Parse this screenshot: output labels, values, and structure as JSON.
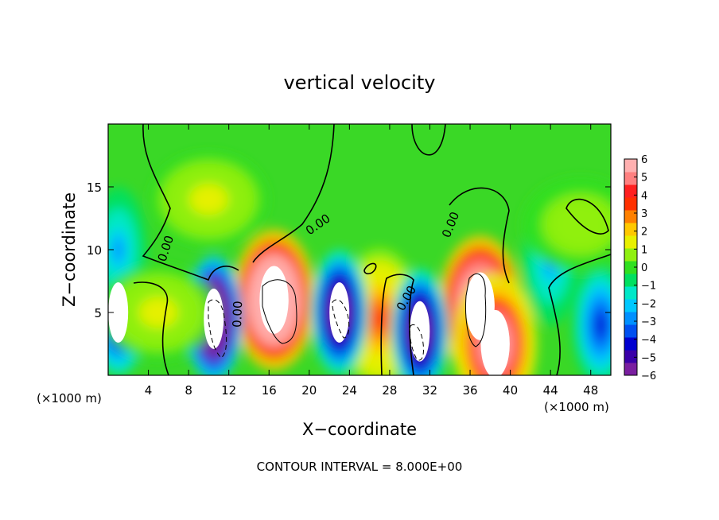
{
  "chart_data": {
    "type": "heatmap",
    "title": "vertical velocity",
    "xlabel": "X−coordinate",
    "ylabel": "Z−coordinate",
    "x_unit_left": "(×1000 m)",
    "x_unit_right": "(×1000 m)",
    "footer": "CONTOUR INTERVAL = 8.000E+00",
    "xlim": [
      0,
      50
    ],
    "ylim": [
      0,
      20
    ],
    "x_ticks": [
      4,
      8,
      12,
      16,
      20,
      24,
      28,
      32,
      36,
      40,
      44,
      48
    ],
    "y_ticks": [
      5,
      10,
      15
    ],
    "colorbar": {
      "min": -6,
      "max": 6,
      "tick_values": [
        6,
        5,
        4,
        3,
        2,
        1,
        0,
        -1,
        -2,
        -3,
        -4,
        -5,
        -6
      ],
      "tick_labels": [
        "6",
        "5",
        "4",
        "3",
        "2",
        "1",
        "0",
        "−1",
        "−2",
        "−3",
        "−4",
        "−5",
        "−6"
      ],
      "colors": [
        "#7a1fa0",
        "#3a00a8",
        "#0000d0",
        "#0050f0",
        "#0090ff",
        "#00c8ff",
        "#00e8c8",
        "#00e060",
        "#30e020",
        "#90f010",
        "#e8f000",
        "#ffc800",
        "#ff8000",
        "#ff3000",
        "#ff2020",
        "#ff8080",
        "#ffb0b0"
      ]
    },
    "contour_labels": [
      "0.00",
      "0.00",
      "0.00",
      "0.00",
      "0.00"
    ],
    "features": [
      {
        "kind": "updraft",
        "x": 16.5,
        "z": 6.0,
        "peak": 13
      },
      {
        "kind": "updraft",
        "x": 37.0,
        "z": 5.5,
        "peak": 12
      },
      {
        "kind": "updraft",
        "x": 38.5,
        "z": 2.5,
        "peak": 8
      },
      {
        "kind": "updraft",
        "x": 27.0,
        "z": 4.5,
        "peak": 4
      },
      {
        "kind": "downdraft",
        "x": 10.5,
        "z": 4.5,
        "peak": -13
      },
      {
        "kind": "downdraft",
        "x": 23.0,
        "z": 5.0,
        "peak": -9
      },
      {
        "kind": "downdraft",
        "x": 31.0,
        "z": 3.5,
        "peak": -9
      },
      {
        "kind": "downdraft",
        "x": 1.0,
        "z": 5.0,
        "peak": -8
      },
      {
        "kind": "downdraft",
        "x": 49.0,
        "z": 4.0,
        "peak": -5
      },
      {
        "kind": "downdraft",
        "x": 1.0,
        "z": 10.0,
        "peak": -3
      },
      {
        "kind": "downdraft",
        "x": 44.0,
        "z": 9.0,
        "peak": -3
      },
      {
        "kind": "weak-updraft",
        "x": 10.0,
        "z": 14.0,
        "peak": 1.5
      },
      {
        "kind": "weak-updraft",
        "x": 5.0,
        "z": 5.0,
        "peak": 1.5
      },
      {
        "kind": "weak-updraft",
        "x": 47.0,
        "z": 12.0,
        "peak": 1.2
      }
    ]
  }
}
